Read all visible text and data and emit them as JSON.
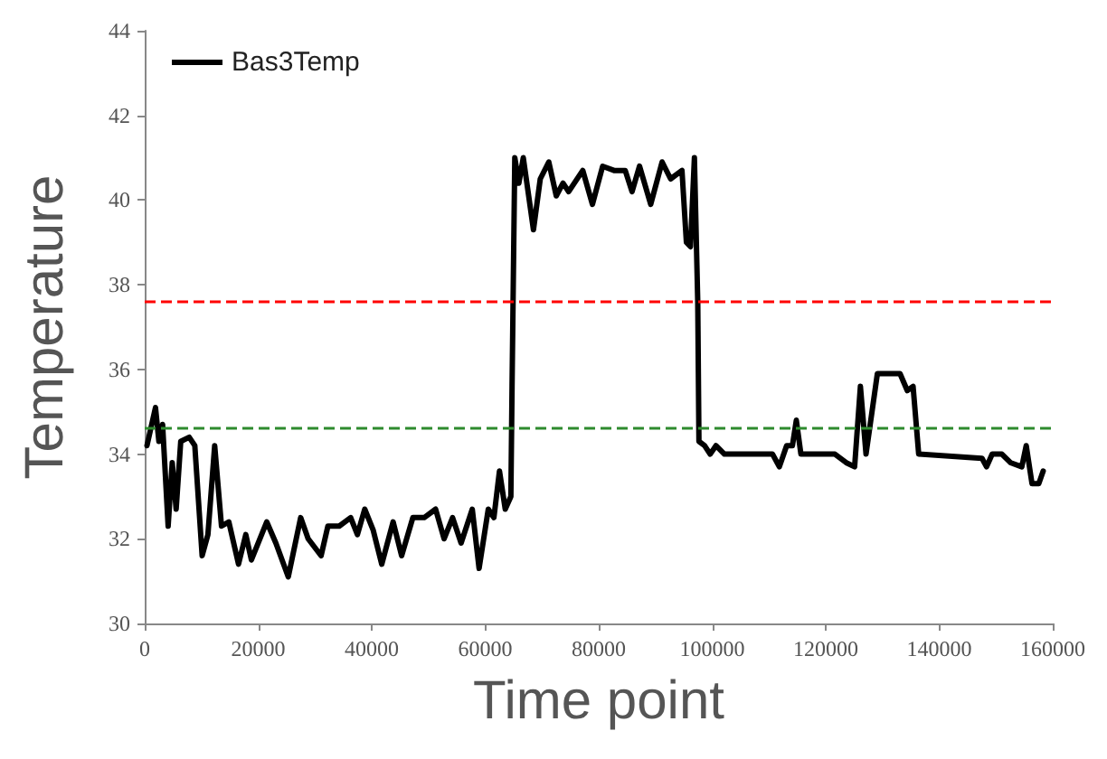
{
  "chart_data": {
    "type": "line",
    "xlabel": "Time point",
    "ylabel": "Temperature",
    "xlim": [
      0,
      160000
    ],
    "xticks": [
      0,
      20000,
      40000,
      60000,
      80000,
      100000,
      120000,
      140000,
      160000
    ],
    "ylim": [
      30,
      44
    ],
    "yticks": [
      30,
      32,
      34,
      36,
      38,
      40,
      42,
      44
    ],
    "grid": false,
    "legend": "top left",
    "marker": "none",
    "line_style": "solid",
    "ref_lines": [
      {
        "axis": "y",
        "value": 37.6,
        "label": null,
        "color": "#ff0000",
        "line_style": "dashed"
      },
      {
        "axis": "y",
        "value": 34.6,
        "label": null,
        "color": "#2e8b2e",
        "line_style": "dashed"
      }
    ],
    "series": [
      {
        "name": "Bas3Temp",
        "color": "#000000",
        "x": [
          400,
          1900,
          2500,
          3150,
          4130,
          4850,
          5540,
          6350,
          7840,
          8830,
          10120,
          11140,
          12330,
          13530,
          14820,
          16530,
          17810,
          18800,
          21500,
          23110,
          25300,
          27480,
          28800,
          31080,
          32280,
          34280,
          36290,
          37480,
          38770,
          40270,
          41770,
          43770,
          45270,
          47250,
          49250,
          51260,
          52750,
          54250,
          55750,
          57720,
          58920,
          60540,
          61530,
          62510,
          63530,
          64520,
          64730,
          65210,
          65930,
          66710,
          68500,
          69700,
          71200,
          72520,
          73710,
          74700,
          77190,
          78890,
          80690,
          82700,
          84670,
          85870,
          87190,
          89160,
          91170,
          92670,
          94670,
          95450,
          96170,
          96860,
          97450,
          97660,
          98650,
          99640,
          100660,
          102150,
          110630,
          111830,
          113110,
          114130,
          114820,
          115630,
          121620,
          123590,
          125090,
          126110,
          127100,
          129100,
          130600,
          133090,
          134370,
          135390,
          136380,
          147540,
          148340,
          149330,
          151040,
          152540,
          154550,
          155330,
          156350,
          157540,
          158320
        ],
        "values": [
          34.2,
          35.1,
          34.3,
          34.7,
          32.3,
          33.8,
          32.7,
          34.3,
          34.4,
          34.2,
          31.6,
          32.1,
          34.2,
          32.3,
          32.4,
          31.4,
          32.1,
          31.5,
          32.4,
          31.9,
          31.1,
          32.5,
          32.0,
          31.6,
          32.3,
          32.3,
          32.5,
          32.1,
          32.7,
          32.2,
          31.4,
          32.4,
          31.6,
          32.5,
          32.5,
          32.7,
          32.0,
          32.5,
          31.9,
          32.7,
          31.3,
          32.7,
          32.5,
          33.6,
          32.7,
          33.0,
          35.6,
          41.0,
          40.4,
          41.0,
          39.3,
          40.5,
          40.9,
          40.1,
          40.4,
          40.2,
          40.7,
          39.9,
          40.8,
          40.7,
          40.7,
          40.2,
          40.8,
          39.9,
          40.9,
          40.5,
          40.7,
          39.0,
          38.9,
          41.0,
          37.6,
          34.3,
          34.2,
          34.0,
          34.2,
          34.0,
          34.0,
          33.7,
          34.2,
          34.2,
          34.8,
          34.0,
          34.0,
          33.8,
          33.7,
          35.6,
          34.0,
          35.9,
          35.9,
          35.9,
          35.5,
          35.6,
          34.0,
          33.9,
          33.7,
          34.0,
          34.0,
          33.8,
          33.7,
          34.2,
          33.3,
          33.3,
          33.6
        ]
      }
    ]
  }
}
